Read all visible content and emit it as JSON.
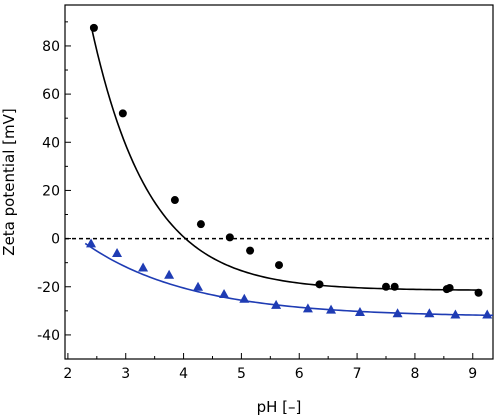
{
  "chart_data": {
    "type": "scatter",
    "title": "",
    "xlabel": "pH [–]",
    "ylabel": "Zeta potential [mV]",
    "xlim": [
      1.95,
      9.35
    ],
    "ylim": [
      -50,
      97
    ],
    "xticks": [
      "2",
      "3",
      "4",
      "5",
      "6",
      "7",
      "8",
      "9"
    ],
    "yticks": [
      "80",
      "60",
      "40",
      "20",
      "0",
      "-20",
      "-40"
    ],
    "xtick_values": [
      2,
      3,
      4,
      5,
      6,
      7,
      8,
      9
    ],
    "ytick_values": [
      80,
      60,
      40,
      20,
      0,
      -20,
      -40
    ],
    "grid": false,
    "reference_line": {
      "y": 0,
      "style": "dashed",
      "color": "#000000"
    },
    "series": [
      {
        "marker": "circle",
        "color": "#000000",
        "points": [
          {
            "x": 2.45,
            "y": 87.5
          },
          {
            "x": 2.95,
            "y": 52.0
          },
          {
            "x": 3.85,
            "y": 16.0
          },
          {
            "x": 4.3,
            "y": 6.0
          },
          {
            "x": 4.8,
            "y": 0.5
          },
          {
            "x": 5.15,
            "y": -5.0
          },
          {
            "x": 5.65,
            "y": -11.0
          },
          {
            "x": 6.35,
            "y": -19.0
          },
          {
            "x": 7.5,
            "y": -20.0
          },
          {
            "x": 7.65,
            "y": -20.0
          },
          {
            "x": 8.55,
            "y": -21.0
          },
          {
            "x": 8.6,
            "y": -20.5
          },
          {
            "x": 9.1,
            "y": -22.5
          }
        ],
        "fit": {
          "x_start": 2.4,
          "x_end": 9.15,
          "a": -21.5,
          "b": 110.0,
          "k": 1.0
        }
      },
      {
        "marker": "triangle",
        "color": "#1f3cb4",
        "points": [
          {
            "x": 2.4,
            "y": -2.0
          },
          {
            "x": 2.85,
            "y": -6.0
          },
          {
            "x": 3.3,
            "y": -12.0
          },
          {
            "x": 3.75,
            "y": -15.0
          },
          {
            "x": 4.25,
            "y": -20.0
          },
          {
            "x": 4.7,
            "y": -23.0
          },
          {
            "x": 5.05,
            "y": -25.0
          },
          {
            "x": 5.6,
            "y": -27.5
          },
          {
            "x": 6.15,
            "y": -29.0
          },
          {
            "x": 6.55,
            "y": -29.5
          },
          {
            "x": 7.05,
            "y": -30.5
          },
          {
            "x": 7.7,
            "y": -31.0
          },
          {
            "x": 8.25,
            "y": -31.0
          },
          {
            "x": 8.7,
            "y": -31.5
          },
          {
            "x": 9.25,
            "y": -31.5
          }
        ],
        "fit": {
          "x_start": 2.3,
          "x_end": 9.35,
          "a": -32.5,
          "b": 30.5,
          "k": 0.55
        }
      }
    ]
  }
}
